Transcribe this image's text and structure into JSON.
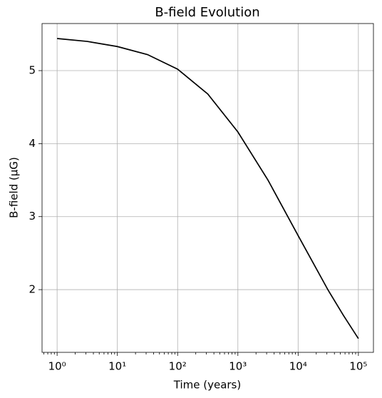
{
  "chart_data": {
    "type": "line",
    "title": "B-field Evolution",
    "x_label": "Time (years)",
    "y_label": "B-field (μG)",
    "x_scale": "log",
    "grid": true,
    "x": [
      1,
      3.162,
      10,
      31.62,
      100,
      316.2,
      1000,
      3162,
      10000,
      31620,
      56230,
      100000
    ],
    "series": [
      {
        "name": "B-field",
        "color": "#000000",
        "values": [
          5.44,
          5.4,
          5.33,
          5.22,
          5.02,
          4.68,
          4.16,
          3.5,
          2.74,
          1.99,
          1.65,
          1.33
        ]
      }
    ],
    "xlim": [
      0.5623,
      177828
    ],
    "ylim": [
      1.141,
      5.645
    ],
    "xticks": [
      {
        "value": 1,
        "label": "10⁰"
      },
      {
        "value": 10,
        "label": "10¹"
      },
      {
        "value": 100,
        "label": "10²"
      },
      {
        "value": 1000,
        "label": "10³"
      },
      {
        "value": 10000,
        "label": "10⁴"
      },
      {
        "value": 100000,
        "label": "10⁵"
      }
    ],
    "yticks": [
      2,
      3,
      4,
      5
    ]
  }
}
